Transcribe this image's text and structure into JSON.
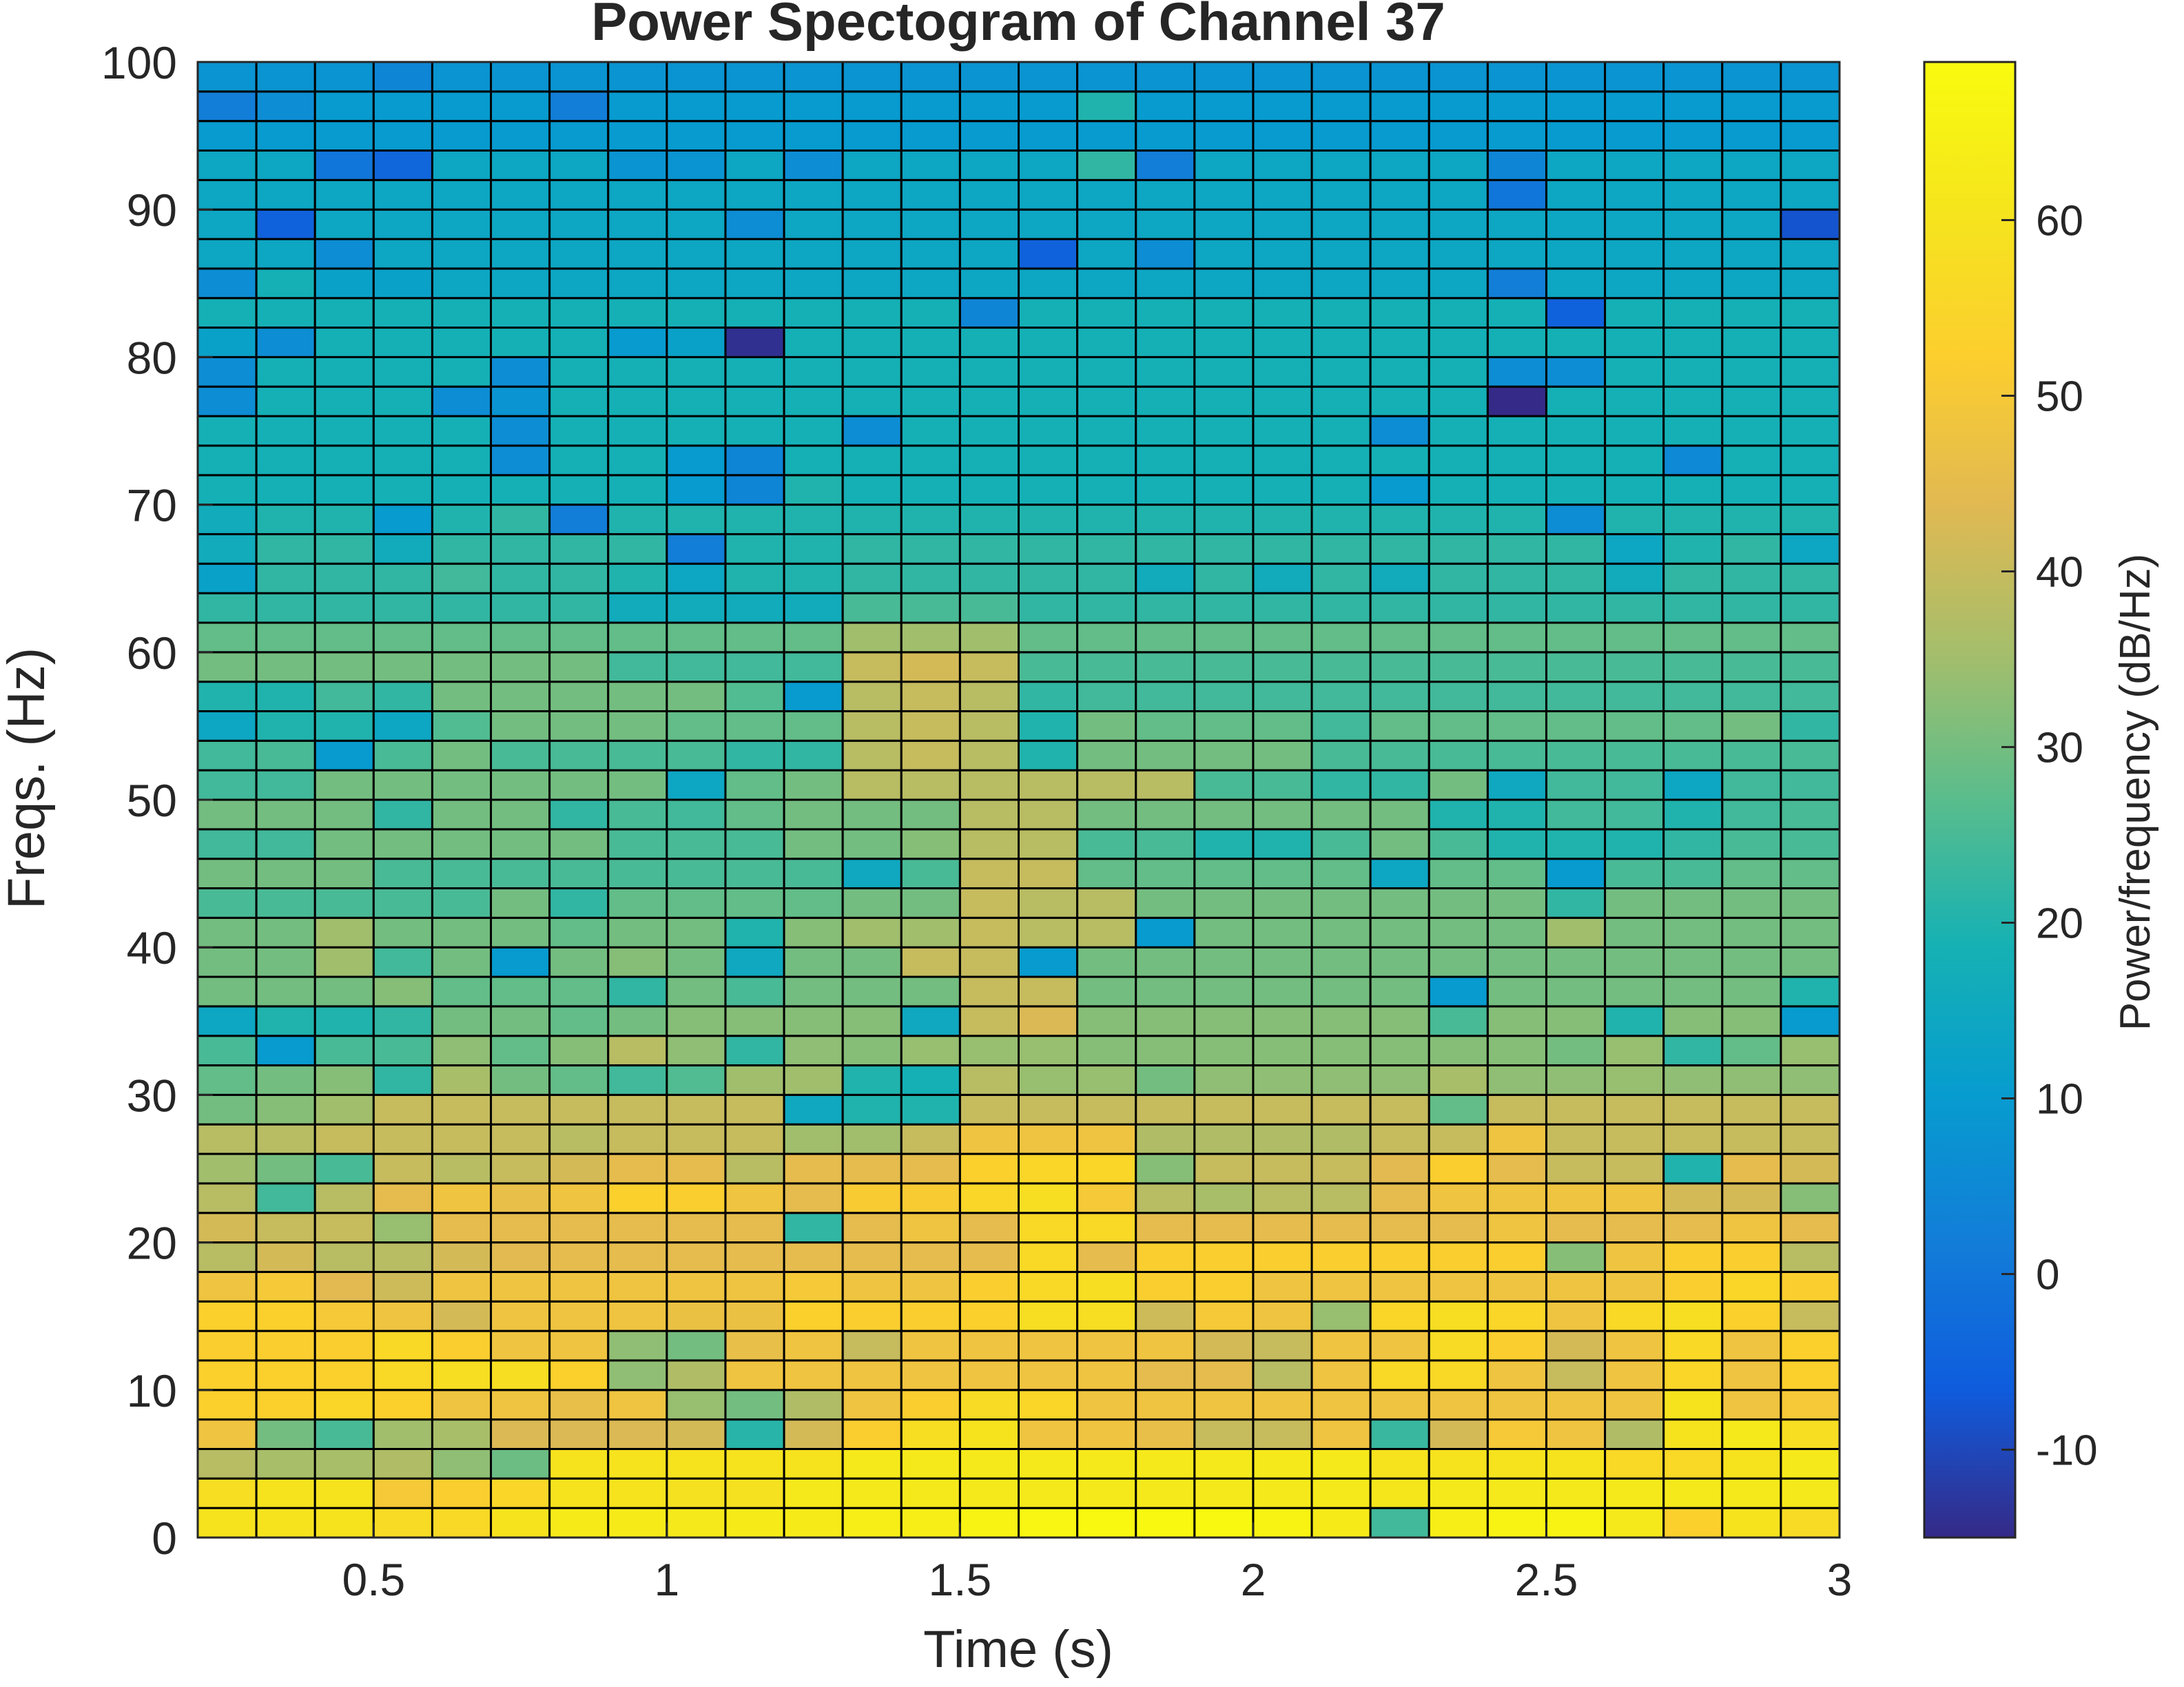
{
  "chart_data": {
    "type": "heatmap",
    "title": "Power Spectogram of Channel 37",
    "xlabel": "Time (s)",
    "ylabel": "Freqs. (Hz)",
    "colorbar_label": "Power/frequency (dB/Hz)",
    "xlim": [
      0.2,
      3.0
    ],
    "ylim": [
      0,
      100
    ],
    "clim": [
      -15,
      69
    ],
    "x_ticks": [
      0.5,
      1,
      1.5,
      2,
      2.5,
      3
    ],
    "x_tick_labels": [
      "0.5",
      "1",
      "1.5",
      "2",
      "2.5",
      "3"
    ],
    "y_ticks": [
      0,
      10,
      20,
      30,
      40,
      50,
      60,
      70,
      80,
      90,
      100
    ],
    "y_tick_labels": [
      "0",
      "10",
      "20",
      "30",
      "40",
      "50",
      "60",
      "70",
      "80",
      "90",
      "100"
    ],
    "colorbar_ticks": [
      -10,
      0,
      10,
      20,
      30,
      40,
      50,
      60
    ],
    "colorbar_tick_labels": [
      "-10",
      "0",
      "10",
      "20",
      "30",
      "40",
      "50",
      "60"
    ],
    "colormap": "parula",
    "grid": "cell edges (black)",
    "time_bins": [
      0.25,
      0.35,
      0.45,
      0.55,
      0.65,
      0.75,
      0.85,
      0.95,
      1.05,
      1.15,
      1.25,
      1.35,
      1.45,
      1.55,
      1.65,
      1.75,
      1.85,
      1.95,
      2.05,
      2.15,
      2.25,
      2.35,
      2.45,
      2.55,
      2.65,
      2.75,
      2.85,
      2.95
    ],
    "freq_bins": [
      1,
      3,
      5,
      7,
      9,
      11,
      13,
      15,
      17,
      19,
      21,
      23,
      25,
      27,
      29,
      31,
      33,
      35,
      37,
      39,
      41,
      43,
      45,
      47,
      49,
      51,
      53,
      55,
      57,
      59,
      61,
      63,
      65,
      67,
      69,
      71,
      73,
      75,
      77,
      79,
      81,
      83,
      85,
      87,
      89,
      91,
      93,
      95,
      97,
      99
    ],
    "values_db": [
      [
        60,
        60,
        60,
        57,
        56,
        60,
        63,
        63,
        62,
        63,
        63,
        64,
        64,
        66,
        67,
        68,
        68,
        68,
        66,
        63,
        24,
        64,
        66,
        66,
        62,
        53,
        60,
        57
      ],
      [
        58,
        60,
        60,
        50,
        52,
        55,
        60,
        60,
        59,
        59,
        62,
        62,
        62,
        62,
        62,
        62,
        62,
        62,
        62,
        62,
        61,
        62,
        62,
        62,
        62,
        62,
        62,
        62
      ],
      [
        38,
        36,
        36,
        37,
        33,
        29,
        60,
        60,
        60,
        60,
        60,
        62,
        62,
        62,
        62,
        62,
        62,
        62,
        62,
        62,
        60,
        60,
        60,
        60,
        56,
        56,
        60,
        62
      ],
      [
        48,
        30,
        25,
        35,
        36,
        43,
        43,
        43,
        42,
        21,
        42,
        52,
        58,
        60,
        48,
        48,
        46,
        40,
        40,
        48,
        23,
        42,
        50,
        48,
        37,
        60,
        62,
        58
      ],
      [
        53,
        53,
        55,
        53,
        48,
        48,
        46,
        48,
        34,
        30,
        37,
        48,
        52,
        57,
        55,
        48,
        48,
        48,
        48,
        48,
        48,
        48,
        48,
        48,
        48,
        60,
        48,
        50
      ],
      [
        53,
        53,
        53,
        56,
        58,
        58,
        53,
        33,
        37,
        48,
        48,
        48,
        48,
        48,
        48,
        48,
        45,
        45,
        38,
        48,
        56,
        56,
        48,
        40,
        48,
        55,
        48,
        53
      ],
      [
        52,
        52,
        52,
        56,
        52,
        48,
        48,
        33,
        30,
        46,
        48,
        40,
        48,
        48,
        48,
        48,
        48,
        42,
        40,
        48,
        48,
        57,
        52,
        42,
        48,
        56,
        48,
        53
      ],
      [
        53,
        53,
        50,
        48,
        42,
        48,
        48,
        48,
        47,
        47,
        53,
        52,
        52,
        53,
        58,
        58,
        41,
        50,
        48,
        34,
        55,
        58,
        55,
        48,
        56,
        58,
        53,
        40
      ],
      [
        48,
        50,
        44,
        41,
        48,
        48,
        48,
        48,
        48,
        48,
        50,
        48,
        48,
        52,
        56,
        58,
        52,
        52,
        48,
        48,
        48,
        48,
        48,
        48,
        48,
        52,
        55,
        52
      ],
      [
        38,
        42,
        38,
        38,
        42,
        44,
        45,
        45,
        45,
        45,
        45,
        45,
        45,
        45,
        56,
        45,
        52,
        52,
        52,
        52,
        52,
        52,
        52,
        32,
        48,
        52,
        52,
        38
      ],
      [
        42,
        40,
        40,
        34,
        45,
        45,
        45,
        45,
        45,
        45,
        22,
        45,
        48,
        45,
        56,
        56,
        45,
        45,
        45,
        45,
        45,
        45,
        48,
        45,
        45,
        45,
        48,
        45
      ],
      [
        38,
        24,
        38,
        45,
        48,
        46,
        48,
        53,
        52,
        48,
        45,
        51,
        51,
        55,
        58,
        50,
        38,
        36,
        38,
        38,
        45,
        48,
        48,
        48,
        48,
        42,
        42,
        32
      ],
      [
        35,
        30,
        25,
        40,
        38,
        40,
        42,
        45,
        45,
        38,
        45,
        45,
        45,
        53,
        55,
        55,
        32,
        40,
        40,
        40,
        44,
        52,
        45,
        40,
        40,
        20,
        45,
        42
      ],
      [
        38,
        38,
        40,
        40,
        40,
        40,
        38,
        40,
        40,
        40,
        35,
        35,
        40,
        48,
        48,
        48,
        37,
        37,
        37,
        37,
        40,
        40,
        48,
        40,
        40,
        40,
        40,
        40
      ],
      [
        30,
        32,
        35,
        40,
        40,
        40,
        40,
        40,
        40,
        40,
        15,
        20,
        20,
        40,
        40,
        40,
        40,
        40,
        40,
        40,
        40,
        28,
        40,
        40,
        40,
        40,
        40,
        40
      ],
      [
        28,
        30,
        32,
        22,
        36,
        30,
        28,
        24,
        26,
        35,
        35,
        20,
        18,
        38,
        34,
        34,
        30,
        33,
        33,
        33,
        33,
        36,
        33,
        33,
        34,
        33,
        33,
        33
      ],
      [
        25,
        10,
        25,
        25,
        33,
        28,
        32,
        38,
        33,
        22,
        33,
        32,
        34,
        34,
        34,
        32,
        32,
        32,
        32,
        32,
        32,
        32,
        32,
        30,
        34,
        22,
        28,
        34
      ],
      [
        14,
        20,
        20,
        22,
        30,
        30,
        28,
        30,
        32,
        32,
        32,
        32,
        15,
        40,
        43,
        32,
        32,
        32,
        32,
        32,
        32,
        25,
        32,
        32,
        20,
        32,
        32,
        10
      ],
      [
        30,
        30,
        30,
        32,
        28,
        28,
        28,
        22,
        30,
        25,
        30,
        30,
        30,
        40,
        40,
        30,
        30,
        30,
        30,
        30,
        30,
        10,
        30,
        30,
        30,
        30,
        30,
        20
      ],
      [
        30,
        30,
        35,
        24,
        30,
        10,
        30,
        32,
        30,
        15,
        30,
        30,
        40,
        40,
        10,
        30,
        30,
        30,
        30,
        30,
        30,
        30,
        30,
        30,
        30,
        30,
        30,
        30
      ],
      [
        30,
        30,
        35,
        30,
        30,
        30,
        28,
        30,
        30,
        20,
        32,
        35,
        35,
        40,
        38,
        38,
        10,
        30,
        30,
        30,
        30,
        30,
        30,
        35,
        30,
        30,
        30,
        30
      ],
      [
        25,
        25,
        25,
        25,
        25,
        30,
        22,
        28,
        28,
        28,
        28,
        30,
        30,
        40,
        38,
        38,
        30,
        30,
        30,
        30,
        30,
        30,
        30,
        22,
        30,
        30,
        30,
        30
      ],
      [
        30,
        30,
        30,
        25,
        25,
        25,
        25,
        25,
        25,
        25,
        25,
        15,
        25,
        40,
        40,
        28,
        28,
        28,
        28,
        28,
        14,
        28,
        28,
        10,
        25,
        25,
        28,
        28
      ],
      [
        24,
        24,
        30,
        30,
        30,
        30,
        30,
        25,
        25,
        25,
        30,
        30,
        32,
        38,
        38,
        25,
        25,
        20,
        20,
        25,
        30,
        25,
        20,
        20,
        20,
        22,
        25,
        25
      ],
      [
        30,
        30,
        30,
        22,
        30,
        30,
        22,
        25,
        24,
        28,
        30,
        30,
        30,
        38,
        38,
        30,
        30,
        30,
        30,
        30,
        30,
        20,
        20,
        24,
        24,
        20,
        24,
        25
      ],
      [
        24,
        24,
        30,
        30,
        30,
        30,
        30,
        30,
        14,
        28,
        30,
        38,
        38,
        38,
        38,
        38,
        38,
        25,
        25,
        22,
        22,
        30,
        15,
        24,
        24,
        14,
        24,
        24
      ],
      [
        24,
        25,
        10,
        25,
        30,
        25,
        25,
        25,
        25,
        22,
        22,
        38,
        40,
        38,
        20,
        30,
        30,
        30,
        30,
        25,
        25,
        25,
        25,
        25,
        25,
        25,
        25,
        25
      ],
      [
        14,
        20,
        20,
        14,
        26,
        30,
        30,
        30,
        28,
        28,
        28,
        38,
        40,
        38,
        20,
        30,
        28,
        28,
        28,
        24,
        28,
        28,
        28,
        28,
        28,
        28,
        30,
        22
      ],
      [
        20,
        20,
        24,
        22,
        30,
        30,
        30,
        30,
        30,
        26,
        10,
        38,
        40,
        38,
        22,
        24,
        24,
        24,
        24,
        24,
        24,
        24,
        24,
        24,
        24,
        24,
        24,
        24
      ],
      [
        30,
        30,
        30,
        30,
        30,
        30,
        30,
        24,
        24,
        24,
        24,
        40,
        42,
        40,
        25,
        25,
        25,
        25,
        25,
        25,
        25,
        25,
        25,
        25,
        25,
        25,
        25,
        25
      ],
      [
        28,
        28,
        28,
        28,
        28,
        28,
        28,
        28,
        28,
        28,
        28,
        35,
        35,
        35,
        28,
        28,
        28,
        28,
        28,
        28,
        28,
        28,
        28,
        28,
        28,
        28,
        28,
        28
      ],
      [
        22,
        22,
        22,
        22,
        22,
        22,
        22,
        16,
        16,
        16,
        16,
        25,
        25,
        25,
        22,
        22,
        22,
        22,
        22,
        22,
        22,
        22,
        22,
        22,
        22,
        22,
        22,
        22
      ],
      [
        12,
        22,
        22,
        22,
        24,
        22,
        22,
        20,
        14,
        20,
        20,
        22,
        22,
        22,
        22,
        22,
        16,
        22,
        16,
        22,
        16,
        22,
        22,
        22,
        16,
        22,
        22,
        22
      ],
      [
        16,
        22,
        22,
        16,
        22,
        22,
        22,
        22,
        2,
        20,
        20,
        22,
        22,
        22,
        22,
        22,
        22,
        22,
        22,
        22,
        22,
        22,
        22,
        22,
        14,
        20,
        22,
        14
      ],
      [
        16,
        20,
        20,
        10,
        20,
        22,
        2,
        20,
        20,
        20,
        20,
        20,
        20,
        20,
        20,
        20,
        20,
        20,
        20,
        20,
        20,
        20,
        20,
        6,
        20,
        20,
        20,
        20
      ],
      [
        18,
        18,
        18,
        18,
        18,
        18,
        18,
        18,
        10,
        4,
        20,
        18,
        18,
        18,
        18,
        18,
        18,
        18,
        18,
        18,
        10,
        18,
        18,
        18,
        18,
        18,
        18,
        18
      ],
      [
        18,
        18,
        18,
        18,
        18,
        6,
        18,
        18,
        10,
        4,
        18,
        18,
        18,
        18,
        18,
        18,
        18,
        18,
        18,
        18,
        18,
        18,
        18,
        18,
        18,
        5,
        18,
        18
      ],
      [
        18,
        18,
        18,
        18,
        18,
        6,
        18,
        18,
        18,
        18,
        18,
        6,
        18,
        18,
        18,
        18,
        18,
        18,
        18,
        18,
        6,
        18,
        18,
        18,
        18,
        18,
        18,
        18
      ],
      [
        6,
        18,
        18,
        18,
        6,
        8,
        18,
        18,
        18,
        18,
        18,
        18,
        18,
        18,
        18,
        18,
        18,
        18,
        18,
        18,
        18,
        18,
        -15,
        18,
        18,
        18,
        18,
        18
      ],
      [
        6,
        18,
        18,
        18,
        18,
        6,
        18,
        18,
        18,
        18,
        18,
        18,
        18,
        18,
        18,
        18,
        18,
        18,
        18,
        18,
        18,
        18,
        6,
        6,
        18,
        18,
        18,
        18
      ],
      [
        12,
        6,
        18,
        18,
        18,
        18,
        18,
        10,
        12,
        -14,
        18,
        18,
        18,
        18,
        18,
        18,
        18,
        18,
        18,
        18,
        18,
        18,
        18,
        18,
        18,
        18,
        18,
        18
      ],
      [
        18,
        18,
        18,
        18,
        18,
        18,
        18,
        18,
        18,
        18,
        18,
        18,
        18,
        4,
        18,
        18,
        18,
        18,
        18,
        18,
        18,
        18,
        18,
        -5,
        18,
        18,
        18,
        18
      ],
      [
        6,
        18,
        12,
        12,
        14,
        14,
        14,
        14,
        14,
        14,
        14,
        14,
        14,
        14,
        14,
        14,
        14,
        14,
        14,
        14,
        14,
        14,
        2,
        14,
        14,
        14,
        14,
        14
      ],
      [
        14,
        14,
        6,
        14,
        14,
        14,
        14,
        14,
        14,
        14,
        14,
        14,
        14,
        14,
        -5,
        14,
        6,
        14,
        14,
        14,
        14,
        14,
        14,
        14,
        14,
        14,
        14,
        14
      ],
      [
        14,
        -5,
        14,
        14,
        14,
        14,
        14,
        14,
        14,
        6,
        14,
        14,
        14,
        14,
        14,
        14,
        14,
        14,
        14,
        14,
        14,
        14,
        14,
        14,
        14,
        14,
        14,
        -8
      ],
      [
        14,
        14,
        14,
        14,
        14,
        14,
        14,
        14,
        14,
        14,
        14,
        14,
        14,
        14,
        14,
        14,
        14,
        14,
        14,
        14,
        14,
        14,
        0,
        14,
        14,
        14,
        14,
        14
      ],
      [
        14,
        14,
        0,
        -4,
        14,
        14,
        14,
        8,
        8,
        14,
        6,
        14,
        14,
        14,
        14,
        22,
        2,
        14,
        14,
        14,
        14,
        14,
        4,
        14,
        14,
        14,
        14,
        14
      ],
      [
        10,
        10,
        10,
        10,
        10,
        10,
        10,
        10,
        10,
        10,
        10,
        10,
        10,
        10,
        10,
        10,
        10,
        10,
        10,
        10,
        10,
        10,
        10,
        10,
        10,
        10,
        10,
        10
      ],
      [
        2,
        6,
        10,
        10,
        10,
        10,
        2,
        10,
        10,
        10,
        10,
        10,
        10,
        10,
        10,
        20,
        10,
        10,
        10,
        10,
        10,
        10,
        10,
        10,
        10,
        10,
        10,
        10
      ],
      [
        8,
        8,
        8,
        4,
        8,
        8,
        8,
        8,
        8,
        8,
        8,
        8,
        8,
        8,
        8,
        8,
        8,
        8,
        8,
        8,
        8,
        8,
        8,
        8,
        8,
        8,
        8,
        8
      ]
    ]
  }
}
